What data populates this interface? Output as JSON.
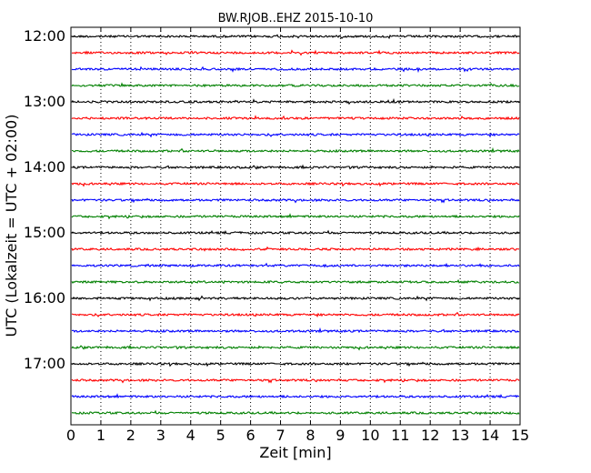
{
  "chart_data": {
    "type": "line",
    "title": "BW.RJOB..EHZ 2015-10-10",
    "xlabel": "Zeit  [min]",
    "ylabel": "UTC (Lokalzeit = UTC + 02:00)",
    "xlim": [
      0,
      15
    ],
    "x_ticks": [
      "0",
      "1",
      "2",
      "3",
      "4",
      "5",
      "6",
      "7",
      "8",
      "9",
      "10",
      "11",
      "12",
      "13",
      "14",
      "15"
    ],
    "y_ticks": [
      "12:00",
      "13:00",
      "14:00",
      "15:00",
      "16:00",
      "17:00"
    ],
    "grid": "vertical-dotted",
    "line_interval_minutes": 15,
    "start_time": "12:00",
    "line_count": 24,
    "series_colors": [
      "#000000",
      "#ff0000",
      "#0000ff",
      "#008000"
    ]
  }
}
